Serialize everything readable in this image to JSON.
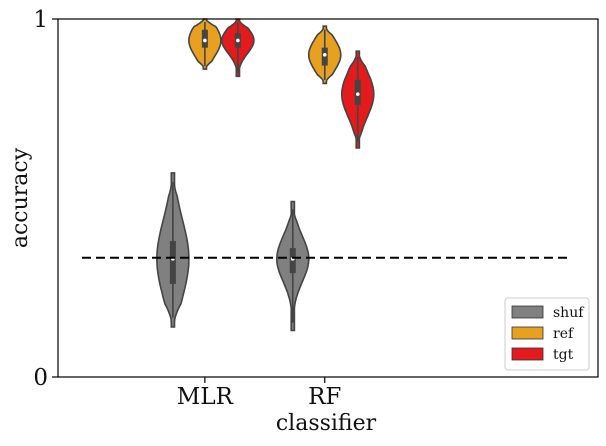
{
  "chart_data": {
    "type": "violin",
    "title": "",
    "xlabel": "classifier",
    "ylabel": "accuracy",
    "ylim": [
      0,
      1
    ],
    "yticks": [
      "0",
      "1"
    ],
    "categories": [
      "MLR",
      "RF"
    ],
    "chance_level": 0.333,
    "legend": {
      "placement": "lower-right",
      "entries": [
        {
          "name": "shuf",
          "color": "#808080"
        },
        {
          "name": "ref",
          "color": "#E8A020"
        },
        {
          "name": "tgt",
          "color": "#E41A1C"
        }
      ]
    },
    "series": [
      {
        "name": "shuf",
        "color": "#808080",
        "violins": [
          {
            "category": "MLR",
            "min": 0.14,
            "max": 0.57,
            "q1": 0.26,
            "median": 0.33,
            "q3": 0.38
          },
          {
            "category": "RF",
            "min": 0.13,
            "max": 0.49,
            "q1": 0.29,
            "median": 0.33,
            "q3": 0.36
          }
        ]
      },
      {
        "name": "ref",
        "color": "#E8A020",
        "violins": [
          {
            "category": "MLR",
            "min": 0.86,
            "max": 1.0,
            "q1": 0.92,
            "median": 0.94,
            "q3": 0.97
          },
          {
            "category": "RF",
            "min": 0.82,
            "max": 0.98,
            "q1": 0.87,
            "median": 0.9,
            "q3": 0.92
          }
        ]
      },
      {
        "name": "tgt",
        "color": "#E41A1C",
        "violins": [
          {
            "category": "MLR",
            "min": 0.84,
            "max": 1.0,
            "q1": 0.92,
            "median": 0.94,
            "q3": 0.96
          },
          {
            "category": "RF",
            "min": 0.64,
            "max": 0.91,
            "q1": 0.76,
            "median": 0.79,
            "q3": 0.83
          }
        ]
      }
    ]
  }
}
